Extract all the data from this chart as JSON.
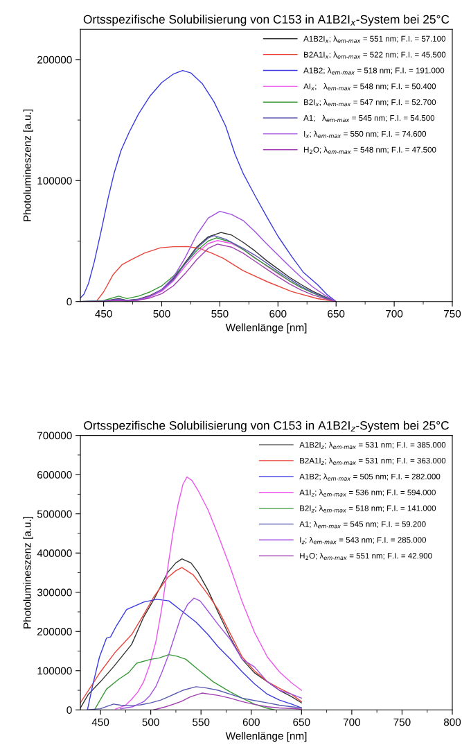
{
  "chart_data": [
    {
      "type": "line",
      "title": "Ortsspezifische Solubilisierung von C153 in A1B2I$_{x}$-System bei 25°C",
      "xlabel": "Wellenlänge [nm]",
      "ylabel": "Photolumineszenz [a.u.]",
      "xlim": [
        430,
        750
      ],
      "xticks": [
        450,
        {
          "value": 475,
          "label": null
        },
        500,
        {
          "value": 525,
          "label": null
        },
        550,
        {
          "value": 575,
          "label": null
        },
        600,
        {
          "value": 625,
          "label": null
        },
        650,
        {
          "value": 675,
          "label": null
        },
        700,
        {
          "value": 725,
          "label": null
        },
        750
      ],
      "ylim": [
        0,
        225000
      ],
      "yticks": [
        0,
        {
          "value": 50000,
          "label": null
        },
        100000,
        {
          "value": 150000,
          "label": null
        },
        200000
      ],
      "legend": "top right",
      "grid": false,
      "marker": "none",
      "line_style": "solid",
      "series": [
        {
          "name": "A1B2I$_{x}$; λ$_{em-max}$ = 551 nm; F.I. = 57.100",
          "color": "#333333",
          "x": [
            430,
            450,
            463,
            470,
            480,
            490,
            500,
            510,
            520,
            530,
            540,
            551,
            560,
            570,
            580,
            590,
            600,
            610,
            620,
            630,
            640,
            650
          ],
          "values": [
            0,
            500,
            2500,
            1000,
            2000,
            5000,
            10000,
            19000,
            32000,
            45000,
            53500,
            57100,
            55000,
            49000,
            42000,
            34000,
            27000,
            20000,
            14000,
            8500,
            4000,
            0
          ]
        },
        {
          "name": "B2A1I$_{x}$; λ$_{em-max}$ = 522 nm; F.I. = 45.500",
          "color": "#e8453c",
          "x": [
            430,
            440,
            444,
            450,
            458,
            466,
            474,
            485,
            499,
            510,
            522,
            533,
            543,
            553,
            570,
            591,
            612,
            634,
            650
          ],
          "values": [
            0,
            0,
            500,
            8000,
            22000,
            30600,
            34700,
            40000,
            44500,
            45300,
            45500,
            43800,
            40000,
            35700,
            25500,
            16300,
            8200,
            2400,
            0
          ]
        },
        {
          "name": "A1B2; λ$_{em-max}$ = 518 nm; F.I. = 191.000",
          "color": "#3a3ae0",
          "x": [
            430,
            433,
            437,
            442,
            448,
            454,
            459,
            465,
            472,
            480,
            490,
            500,
            510,
            518,
            525,
            535,
            545,
            555,
            563,
            570,
            580,
            591,
            600,
            612,
            622,
            634,
            642,
            650
          ],
          "values": [
            3000,
            6000,
            15000,
            33000,
            59000,
            86000,
            106000,
            125000,
            140000,
            155000,
            170000,
            181000,
            188000,
            191000,
            189000,
            180000,
            165000,
            145000,
            122000,
            106000,
            88000,
            69000,
            54000,
            37000,
            24000,
            14000,
            6000,
            0
          ]
        },
        {
          "name": "AI$_{x}$;   λ$_{em-max}$ = 548 nm; F.I. = 50.400",
          "color": "#ee55ee",
          "x": [
            480,
            490,
            500,
            510,
            520,
            530,
            540,
            548,
            560,
            570,
            580,
            590,
            600,
            610,
            620
          ],
          "values": [
            1500,
            4000,
            8500,
            17000,
            29000,
            40000,
            48000,
            50400,
            48000,
            43000,
            36500,
            29500,
            23000,
            17000,
            11500
          ]
        },
        {
          "name": "B2I$_{x}$; λ$_{em-max}$ = 547 nm; F.I. = 52.700",
          "color": "#3a9a3a",
          "x": [
            430,
            450,
            463,
            470,
            480,
            490,
            500,
            510,
            520,
            530,
            540,
            547,
            560,
            570,
            580,
            590,
            600,
            610,
            620,
            630,
            640,
            650
          ],
          "values": [
            0,
            800,
            4500,
            2500,
            4500,
            8000,
            13000,
            21000,
            31000,
            42000,
            50000,
            52700,
            49000,
            43000,
            36000,
            30000,
            23500,
            17000,
            11500,
            7000,
            3000,
            0
          ]
        },
        {
          "name": "A1;   λ$_{em-max}$ = 545 nm; F.I. = 54.500",
          "color": "#5a5ab0",
          "x": [
            430,
            450,
            463,
            470,
            480,
            490,
            500,
            510,
            520,
            530,
            540,
            545,
            555,
            570,
            580,
            590,
            600,
            610,
            620,
            630,
            640,
            650
          ],
          "values": [
            0,
            400,
            2000,
            800,
            1800,
            4500,
            9500,
            18000,
            31000,
            44000,
            52500,
            54500,
            51500,
            44000,
            38500,
            32000,
            25000,
            18500,
            12500,
            7500,
            3500,
            0
          ]
        },
        {
          "name": "I$_{x}$; λ$_{em-max}$ = 550 nm; F.I. = 74.600",
          "color": "#a050e0",
          "x": [
            430,
            450,
            463,
            470,
            480,
            490,
            500,
            510,
            520,
            530,
            540,
            550,
            560,
            570,
            580,
            590,
            600,
            610,
            620,
            630,
            640,
            650
          ],
          "values": [
            0,
            300,
            1500,
            500,
            1500,
            4500,
            10000,
            20000,
            36000,
            55000,
            69000,
            74600,
            72000,
            67000,
            58000,
            48000,
            38500,
            29000,
            20000,
            12000,
            5500,
            0
          ]
        },
        {
          "name": "H$_{2}$O; λ$_{em-max}$ = 548 nm; F.I. = 47.500",
          "color": "#a040b0",
          "x": [
            430,
            450,
            463,
            470,
            480,
            490,
            500,
            510,
            520,
            530,
            540,
            548,
            560,
            570,
            580,
            590,
            600,
            610,
            620,
            630,
            640,
            650
          ],
          "values": [
            0,
            200,
            1000,
            300,
            1000,
            3000,
            6500,
            13000,
            23000,
            34500,
            44000,
            47500,
            45000,
            40000,
            33500,
            27000,
            20500,
            14500,
            9500,
            5500,
            2500,
            0
          ]
        }
      ]
    },
    {
      "type": "line",
      "title": "Ortsspezifische Solubilisierung von C153 in A1B2I$_{z}$-System bei 25°C",
      "xlabel": "Wellenlänge [nm]",
      "ylabel": "Photolumineszenz [a.u.]",
      "xlim": [
        430,
        800
      ],
      "xticks": [
        450,
        {
          "value": 475,
          "label": null
        },
        500,
        {
          "value": 525,
          "label": null
        },
        550,
        {
          "value": 575,
          "label": null
        },
        600,
        {
          "value": 625,
          "label": null
        },
        650,
        {
          "value": 675,
          "label": null
        },
        700,
        {
          "value": 725,
          "label": null
        },
        750,
        {
          "value": 775,
          "label": null
        },
        800
      ],
      "ylim": [
        0,
        700000
      ],
      "yticks": [
        0,
        {
          "value": 50000,
          "label": null
        },
        100000,
        {
          "value": 150000,
          "label": null
        },
        200000,
        {
          "value": 250000,
          "label": null
        },
        300000,
        {
          "value": 350000,
          "label": null
        },
        400000,
        {
          "value": 450000,
          "label": null
        },
        500000,
        {
          "value": 550000,
          "label": null
        },
        600000,
        {
          "value": 650000,
          "label": null
        },
        700000
      ],
      "legend": "top right",
      "grid": false,
      "marker": "none",
      "line_style": "solid",
      "series": [
        {
          "name": "A1B2I$_{z}$; λ$_{em-max}$ = 531 nm; F.I. = 385.000",
          "color": "#333333",
          "x": [
            430,
            438,
            450,
            463,
            481,
            493,
            503,
            517,
            525,
            531,
            540,
            547,
            557,
            567,
            579,
            591,
            603,
            616,
            628,
            640,
            650
          ],
          "values": [
            5000,
            40000,
            72000,
            110000,
            167000,
            237000,
            281000,
            351000,
            375000,
            385000,
            375000,
            351000,
            305000,
            249000,
            185000,
            129000,
            95000,
            72000,
            50000,
            34000,
            18000
          ]
        },
        {
          "name": "B2A1I$_{z}$; λ$_{em-max}$ = 531 nm; F.I. = 363.000",
          "color": "#e8453c",
          "x": [
            430,
            450,
            464,
            481,
            493,
            503,
            517,
            525,
            531,
            542,
            557,
            567,
            579,
            591,
            603,
            616,
            628,
            640,
            650
          ],
          "values": [
            18000,
            97000,
            145000,
            192000,
            243000,
            288000,
            338000,
            355000,
            363000,
            345000,
            294000,
            256000,
            195000,
            135000,
            100000,
            72000,
            55000,
            40000,
            21000
          ]
        },
        {
          "name": "A1B2; λ$_{em-max}$ = 505 nm; F.I. = 282.000",
          "color": "#3a3ae0",
          "x": [
            437,
            442,
            449,
            456,
            460,
            466,
            476,
            493,
            506,
            518,
            532,
            545,
            557,
            567,
            579,
            591,
            603,
            616,
            628,
            640,
            650
          ],
          "values": [
            0,
            60000,
            135000,
            183000,
            186000,
            215000,
            256000,
            275000,
            282000,
            278000,
            250000,
            224000,
            192000,
            161000,
            130000,
            97000,
            67000,
            40000,
            25000,
            15000,
            5000
          ]
        },
        {
          "name": "A1I$_{z}$; λ$_{em-max}$ = 536 nm; F.I. = 594.000",
          "color": "#ee55ee",
          "x": [
            465,
            475,
            481,
            487,
            493,
            499,
            505,
            511,
            517,
            522,
            527,
            532,
            536,
            541,
            547,
            557,
            567,
            579,
            591,
            603,
            616,
            628,
            640,
            650
          ],
          "values": [
            2000,
            12000,
            27000,
            45000,
            72000,
            115000,
            173000,
            260000,
            364000,
            450000,
            522000,
            575000,
            594000,
            585000,
            560000,
            510000,
            446000,
            364000,
            275000,
            199000,
            135000,
            97000,
            69000,
            50000
          ]
        },
        {
          "name": "B2I$_{z}$; λ$_{em-max}$ = 518 nm; F.I. = 141.000",
          "color": "#3a9a3a",
          "x": [
            444,
            450,
            456,
            468,
            478,
            486,
            500,
            508,
            518,
            526,
            535,
            547,
            562,
            579,
            591,
            603,
            615,
            623
          ],
          "values": [
            0,
            27000,
            53000,
            78000,
            95000,
            119000,
            129000,
            132000,
            141000,
            137000,
            129000,
            103000,
            72000,
            46000,
            30000,
            15000,
            5000,
            0
          ]
        },
        {
          "name": "A1; λ$_{em-max}$ = 545 nm; F.I. = 59.200",
          "color": "#5a5ab0",
          "x": [
            437,
            450,
            463,
            470,
            481,
            490,
            500,
            510,
            518,
            532,
            545,
            555,
            567,
            579,
            591,
            603,
            616,
            628,
            640,
            650
          ],
          "values": [
            0,
            3000,
            15000,
            12000,
            11000,
            13000,
            18000,
            25000,
            34000,
            50000,
            59200,
            56000,
            50000,
            40000,
            30000,
            24000,
            18000,
            12000,
            8000,
            5000
          ]
        },
        {
          "name": "I$_{z}$; λ$_{em-max}$ = 543 nm; F.I. = 285.000",
          "color": "#a050e0",
          "x": [
            470,
            482,
            493,
            499,
            505,
            511,
            518,
            524,
            530,
            537,
            543,
            549,
            554,
            567,
            579,
            591,
            603,
            616,
            628,
            640,
            650
          ],
          "values": [
            3000,
            8000,
            21000,
            36000,
            59000,
            95000,
            142000,
            190000,
            237000,
            270000,
            285000,
            278000,
            262000,
            218000,
            180000,
            129000,
            110000,
            72000,
            50000,
            40000,
            30000
          ]
        },
        {
          "name": "H$_{2}$O; λ$_{em-max}$ = 551 nm; F.I. = 42.900",
          "color": "#a040b0",
          "x": [
            503,
            515,
            530,
            540,
            551,
            567,
            579,
            591,
            603,
            616,
            628,
            640,
            650
          ],
          "values": [
            0,
            8000,
            21000,
            34000,
            42900,
            37000,
            30000,
            21000,
            14000,
            8000,
            5000,
            3500,
            2000
          ]
        }
      ]
    }
  ]
}
